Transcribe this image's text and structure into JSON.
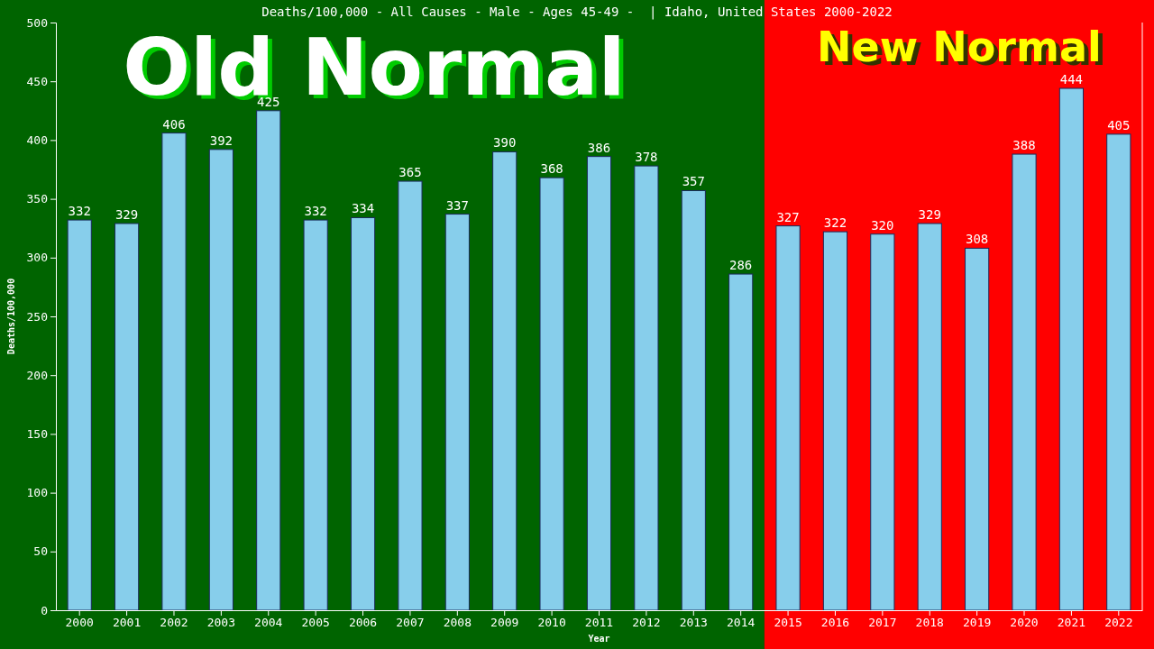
{
  "chart_data": {
    "type": "bar",
    "title": "Deaths/100,000 - All Causes - Male - Ages 45-49 -  | Idaho, United States 2000-2022",
    "xlabel": "Year",
    "ylabel": "Deaths/100,000",
    "categories": [
      "2000",
      "2001",
      "2002",
      "2003",
      "2004",
      "2005",
      "2006",
      "2007",
      "2008",
      "2009",
      "2010",
      "2011",
      "2012",
      "2013",
      "2014",
      "2015",
      "2016",
      "2017",
      "2018",
      "2019",
      "2020",
      "2021",
      "2022"
    ],
    "values": [
      332,
      329,
      406,
      392,
      425,
      332,
      334,
      365,
      337,
      390,
      368,
      386,
      378,
      357,
      286,
      327,
      322,
      320,
      329,
      308,
      388,
      444,
      405
    ],
    "color": "#87ceeb",
    "ylim": [
      0,
      500
    ],
    "yticks": [
      0,
      50,
      100,
      150,
      200,
      250,
      300,
      350,
      400,
      450,
      500
    ],
    "data_labels": true,
    "grid": false,
    "bands": [
      {
        "axis": "x",
        "from": "2000",
        "to": "2014",
        "label": "Old Normal",
        "color": "#006400"
      },
      {
        "axis": "x",
        "from": "2015",
        "to": "2022",
        "label": "New Normal",
        "color": "#ff0000"
      }
    ]
  }
}
